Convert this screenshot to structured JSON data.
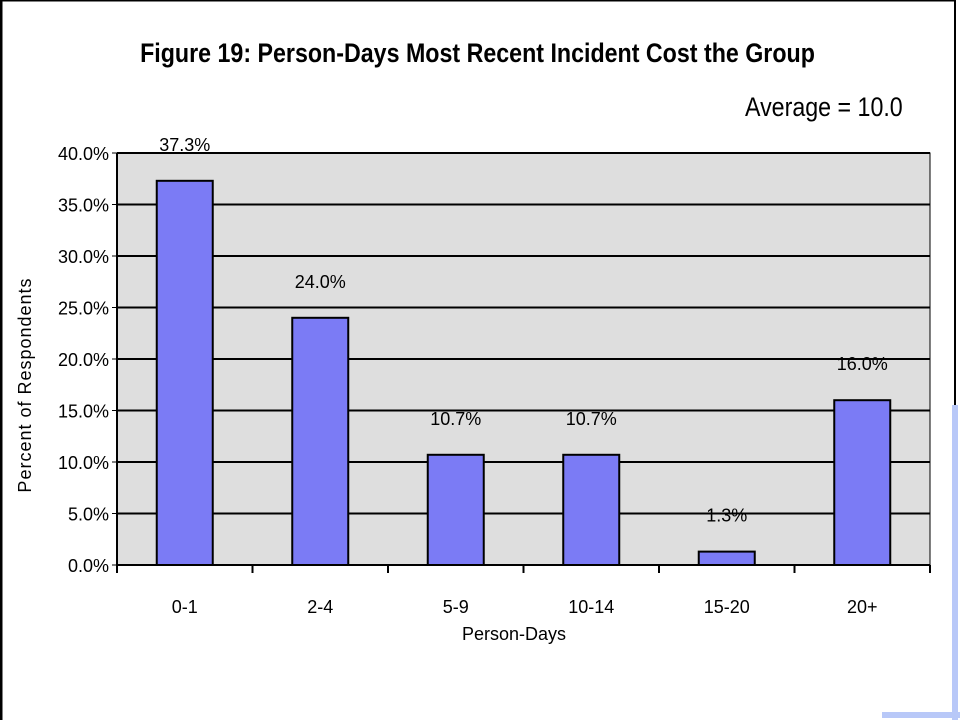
{
  "chart_data": {
    "type": "bar",
    "title": "Figure 19:  Person-Days Most Recent Incident Cost the Group",
    "annotation": "Average = 10.0",
    "xlabel": "Person-Days",
    "ylabel": "Percent of Respondents",
    "categories": [
      "0-1",
      "2-4",
      "5-9",
      "10-14",
      "15-20",
      "20+"
    ],
    "values": [
      37.3,
      24.0,
      10.7,
      10.7,
      1.3,
      16.0
    ],
    "value_labels": [
      "37.3%",
      "24.0%",
      "10.7%",
      "10.7%",
      "1.3%",
      "16.0%"
    ],
    "yticks": [
      "0.0%",
      "5.0%",
      "10.0%",
      "15.0%",
      "20.0%",
      "25.0%",
      "30.0%",
      "35.0%",
      "40.0%"
    ],
    "ylim": [
      0,
      40
    ],
    "grid": true,
    "legend": "none",
    "colors": {
      "bar": "#7b7bf5",
      "plot_background": "#dedede",
      "grid": "#000000",
      "deco_accent": "#b8c8f8"
    }
  }
}
